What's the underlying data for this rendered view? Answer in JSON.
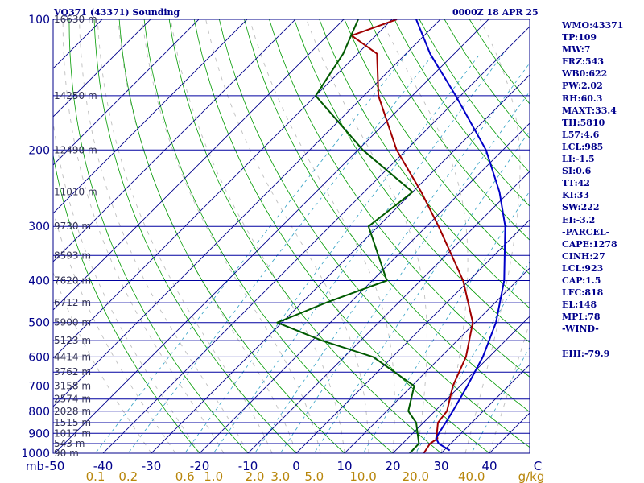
{
  "header": {
    "station_title": "VQ371 (43371) Sounding",
    "valid_time": "0000Z 18 APR 25"
  },
  "indices": [
    "WMO:43371",
    "TP:109",
    "MW:7",
    "FRZ:543",
    "WB0:622",
    "PW:2.02",
    "RH:60.3",
    "MAXT:33.4",
    "TH:5810",
    "L57:4.6",
    "LCL:985",
    "LI:-1.5",
    "SI:0.6",
    "TT:42",
    "KI:33",
    "SW:222",
    "EI:-3.2",
    "-PARCEL-",
    "CAPE:1278",
    "CINH:27",
    "LCL:923",
    "CAP:1.5",
    "LFC:818",
    "EL:148",
    "MPL:78",
    "-WIND-",
    "",
    "EHI:-79.9"
  ],
  "colors": {
    "background": "#ffffff",
    "frame": "#00008b",
    "isobar": "#0000a0",
    "isotherm": "#00008b",
    "dry_adiabat": "#009a00",
    "moist_adiabat": "#bfbfbf",
    "mixing_ratio": "#2f9fc4",
    "temperature": "#a00000",
    "dewpoint": "#005a00",
    "parcel": "#0000c8",
    "wmr_labels": "#b8860b",
    "index_text": "#00008b"
  },
  "chart_data": {
    "type": "line",
    "chart_kind": "skew-T log-P sounding",
    "y_axis": {
      "label": "mb",
      "scale": "log",
      "ylim": [
        1000,
        100
      ],
      "ticks": [
        100,
        200,
        300,
        400,
        500,
        600,
        700,
        800,
        900,
        1000
      ]
    },
    "x_axis": {
      "label": "temperature (C)",
      "xlim": [
        -50,
        50
      ],
      "ticks": [
        -50,
        -40,
        -30,
        -20,
        -10,
        0,
        10,
        20,
        30,
        40,
        50
      ],
      "tick_labels": [
        "-50",
        "-40",
        "-30",
        "-20",
        "-10",
        "0",
        "10",
        "20",
        "30",
        "40",
        "C"
      ]
    },
    "mixing_ratio_axis": {
      "unit": "g/kg",
      "values": [
        0.1,
        0.2,
        0.6,
        1.0,
        2.0,
        3.0,
        5.0,
        10.0,
        20.0,
        40.0
      ],
      "labels": [
        "0.1",
        "0.2",
        "0.6",
        "1.0",
        "2.0",
        "3.0",
        "5.0",
        "10.0",
        "20.0",
        "40.0"
      ]
    },
    "height_labels": [
      {
        "p": 100,
        "label": "16630 m"
      },
      {
        "p": 150,
        "label": "14250 m"
      },
      {
        "p": 200,
        "label": "12490 m"
      },
      {
        "p": 250,
        "label": "11010 m"
      },
      {
        "p": 300,
        "label": "9730 m"
      },
      {
        "p": 350,
        "label": "8593 m"
      },
      {
        "p": 400,
        "label": "7620 m"
      },
      {
        "p": 450,
        "label": "6712 m"
      },
      {
        "p": 500,
        "label": "5900 m"
      },
      {
        "p": 550,
        "label": "5123 m"
      },
      {
        "p": 600,
        "label": "4414 m"
      },
      {
        "p": 650,
        "label": "3762 m"
      },
      {
        "p": 700,
        "label": "3158 m"
      },
      {
        "p": 750,
        "label": "2574 m"
      },
      {
        "p": 800,
        "label": "2028 m"
      },
      {
        "p": 850,
        "label": "1515 m"
      },
      {
        "p": 900,
        "label": "1017 m"
      },
      {
        "p": 950,
        "label": "543 m"
      },
      {
        "p": 1000,
        "label": "90 m"
      }
    ],
    "series": [
      {
        "key": "temperature",
        "points": [
          [
            1000,
            26.4
          ],
          [
            950,
            25.7
          ],
          [
            925,
            26.2
          ],
          [
            900,
            25
          ],
          [
            850,
            23
          ],
          [
            800,
            22.5
          ],
          [
            700,
            18.5
          ],
          [
            600,
            15.2
          ],
          [
            500,
            9.5
          ],
          [
            400,
            -1.2
          ],
          [
            300,
            -17.5
          ],
          [
            250,
            -28.2
          ],
          [
            200,
            -42
          ],
          [
            150,
            -57
          ],
          [
            120,
            -66
          ],
          [
            109,
            -75
          ],
          [
            100,
            -69
          ]
        ]
      },
      {
        "key": "dewpoint",
        "points": [
          [
            1000,
            23.5
          ],
          [
            950,
            23.4
          ],
          [
            900,
            21
          ],
          [
            850,
            18.5
          ],
          [
            800,
            14.5
          ],
          [
            700,
            10.5
          ],
          [
            600,
            -4
          ],
          [
            550,
            -18
          ],
          [
            500,
            -31
          ],
          [
            450,
            -25
          ],
          [
            400,
            -17
          ],
          [
            300,
            -32
          ],
          [
            250,
            -30
          ],
          [
            200,
            -49
          ],
          [
            150,
            -70
          ],
          [
            120,
            -73
          ],
          [
            100,
            -77
          ]
        ]
      },
      {
        "key": "parcel",
        "points": [
          [
            985,
            31.2
          ],
          [
            950,
            27.5
          ],
          [
            923,
            25.8
          ],
          [
            900,
            25.4
          ],
          [
            850,
            24.6
          ],
          [
            800,
            23.7
          ],
          [
            700,
            21.5
          ],
          [
            600,
            18.7
          ],
          [
            500,
            14.3
          ],
          [
            400,
            7.3
          ],
          [
            300,
            -3.7
          ],
          [
            250,
            -12
          ],
          [
            200,
            -23.5
          ],
          [
            150,
            -41
          ],
          [
            120,
            -55
          ],
          [
            100,
            -65
          ]
        ]
      }
    ],
    "wind_barbs": false,
    "grid": true
  }
}
